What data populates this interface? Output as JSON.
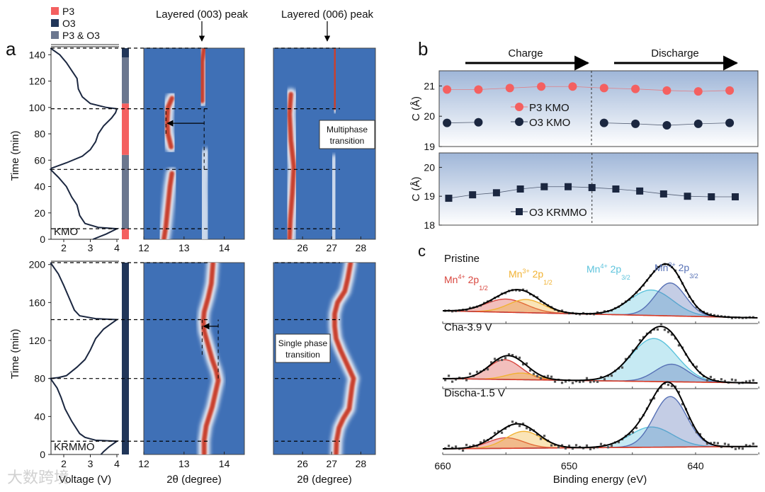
{
  "watermark": "大数跨境",
  "colors": {
    "p3": "#f46060",
    "o3": "#213659",
    "mixed": "#6b778f",
    "heat_bg": "#3f70b6",
    "heat_peak": "#c8402e",
    "xps_mn4_12": "#d9473f",
    "xps_mn3_12": "#f1b232",
    "xps_mn4_32": "#5cc3dc",
    "xps_mn3_32": "#5670b5"
  },
  "chart_data": [
    {
      "panel": "a",
      "panel_letter": "a",
      "type": "heatmap",
      "legend": [
        {
          "key": "p3",
          "label": "P3"
        },
        {
          "key": "o3",
          "label": "O3"
        },
        {
          "key": "mixed",
          "label": "P3 & O3"
        }
      ],
      "peak_titles": [
        "Layered (003) peak",
        "Layered (006) peak"
      ],
      "ylabel": "Time (min)",
      "voltage_xlabel": "Voltage (V)",
      "theta_xlabel": "2θ (degree)",
      "voltage_ticks": [
        "2",
        "3",
        "4"
      ],
      "theta1_ticks": [
        "12",
        "13",
        "14"
      ],
      "theta2_ticks": [
        "26",
        "27",
        "28"
      ],
      "rows": [
        {
          "sample": "KMO",
          "ylim": [
            0,
            145
          ],
          "yticks": [
            "0",
            "20",
            "40",
            "60",
            "80",
            "100",
            "120",
            "140"
          ],
          "voltage_curve": {
            "t": [
              0,
              4,
              8,
              9,
              12,
              18,
              26,
              32,
              40,
              47,
              53,
              54,
              58,
              63,
              68,
              74,
              80,
              86,
              92,
              96,
              99,
              100,
              103,
              108,
              114,
              122,
              128,
              134,
              140,
              145
            ],
            "v": [
              3.1,
              3.6,
              4.0,
              3.3,
              2.8,
              2.6,
              2.5,
              2.3,
              2.1,
              1.8,
              1.5,
              1.55,
              2.1,
              2.7,
              3.0,
              3.2,
              3.3,
              3.5,
              3.8,
              3.95,
              4.0,
              3.6,
              3.0,
              2.7,
              2.55,
              2.5,
              2.3,
              2.1,
              1.85,
              1.5
            ]
          },
          "phases": [
            {
              "from": 0,
              "to": 8,
              "phase": "p3"
            },
            {
              "from": 8,
              "to": 64,
              "phase": "mixed"
            },
            {
              "from": 64,
              "to": 103,
              "phase": "p3"
            },
            {
              "from": 103,
              "to": 138,
              "phase": "mixed"
            },
            {
              "from": 138,
              "to": 145,
              "phase": "o3"
            }
          ],
          "markers_min": [
            8,
            53,
            99,
            145
          ],
          "theta1_range": [
            12,
            14.5
          ],
          "theta2_range": [
            25,
            28.5
          ],
          "ridges_003": [
            {
              "t": [
                0,
                10,
                25,
                40,
                50
              ],
              "theta": [
                12.5,
                12.55,
                12.6,
                12.65,
                12.7
              ],
              "intensity": 1
            },
            {
              "t": [
                50,
                60,
                70
              ],
              "theta": [
                12.7,
                12.7,
                12.7
              ],
              "intensity": 0.4
            },
            {
              "t": [
                70,
                80,
                90,
                100,
                107
              ],
              "theta": [
                12.68,
                12.6,
                12.58,
                12.6,
                12.7
              ],
              "intensity": 1
            },
            {
              "t": [
                0,
                20,
                40,
                55,
                65
              ],
              "theta": [
                13.5,
                13.5,
                13.48,
                13.5,
                13.55
              ],
              "intensity": 0.45
            },
            {
              "t": [
                105,
                115,
                125,
                135,
                145
              ],
              "theta": [
                13.45,
                13.45,
                13.45,
                13.45,
                13.5
              ],
              "intensity": 0.8
            }
          ],
          "ridges_006": [
            {
              "t": [
                0,
                15,
                35,
                55,
                75,
                95,
                110
              ],
              "theta": [
                25.55,
                25.58,
                25.65,
                25.7,
                25.6,
                25.55,
                25.6
              ],
              "intensity": 1
            },
            {
              "t": [
                0,
                20,
                40,
                60
              ],
              "theta": [
                27.05,
                27.05,
                27.1,
                27.1
              ],
              "intensity": 0.45
            },
            {
              "t": [
                100,
                115,
                130,
                145
              ],
              "theta": [
                27.1,
                27.12,
                27.1,
                27.12
              ],
              "intensity": 0.75
            }
          ],
          "annotation": "Multiphase transition",
          "shift_arrow": {
            "t": 88,
            "from_theta": 13.5,
            "to_theta": 12.55
          }
        },
        {
          "sample": "KRMMO",
          "ylim": [
            0,
            202
          ],
          "yticks": [
            "0",
            "40",
            "80",
            "120",
            "160",
            "200"
          ],
          "voltage_curve": {
            "t": [
              0,
              3,
              8,
              14,
              15,
              18,
              22,
              35,
              48,
              60,
              70,
              80,
              81,
              83,
              92,
              100,
              110,
              122,
              132,
              138,
              142,
              143,
              146,
              152,
              165,
              178,
              190,
              202
            ],
            "v": [
              3.4,
              3.5,
              3.7,
              4.0,
              3.2,
              2.8,
              2.6,
              2.3,
              2.05,
              1.9,
              1.75,
              1.5,
              1.8,
              2.1,
              2.5,
              2.8,
              3.0,
              3.2,
              3.5,
              3.8,
              4.0,
              3.2,
              2.6,
              2.4,
              2.2,
              2.0,
              1.8,
              1.5
            ]
          },
          "phases": [
            {
              "from": 0,
              "to": 202,
              "phase": "o3"
            }
          ],
          "markers_min": [
            14,
            80,
            142,
            202
          ],
          "theta1_range": [
            12,
            14.5
          ],
          "theta2_range": [
            25,
            28.5
          ],
          "ridges_003": [
            {
              "t": [
                0,
                15,
                30,
                50,
                65,
                78,
                88,
                100,
                115,
                130,
                140,
                150,
                165,
                180,
                202
              ],
              "theta": [
                13.5,
                13.5,
                13.55,
                13.7,
                13.78,
                13.85,
                13.8,
                13.7,
                13.6,
                13.5,
                13.48,
                13.5,
                13.6,
                13.68,
                13.72
              ],
              "intensity": 1
            }
          ],
          "ridges_006": [
            {
              "t": [
                0,
                15,
                28,
                38,
                48,
                60,
                72,
                80,
                90,
                100,
                110,
                122,
                135,
                148,
                160,
                172,
                185,
                202
              ],
              "theta": [
                27.15,
                27.17,
                27.25,
                27.4,
                27.6,
                27.65,
                27.7,
                27.75,
                27.6,
                27.45,
                27.3,
                27.15,
                27.1,
                27.1,
                27.2,
                27.45,
                27.55,
                27.65
              ],
              "intensity": 1
            }
          ],
          "annotation": "Single phase transition",
          "shift_arrow": {
            "t": 135,
            "from_theta": 13.85,
            "to_theta": 13.45
          }
        }
      ]
    },
    {
      "panel": "b",
      "panel_letter": "b",
      "type": "scatter",
      "charge_label": "Charge",
      "discharge_label": "Discharge",
      "ylabel": "C (Å)",
      "subplots": [
        {
          "ylim": [
            19,
            21.5
          ],
          "yticks": [
            "19",
            "20",
            "21"
          ],
          "series": [
            {
              "name": "P3 KMO",
              "marker": "circle",
              "color": "#f46060",
              "x": [
                1,
                2,
                3,
                4,
                5,
                6,
                7,
                8,
                9,
                10
              ],
              "values": [
                20.88,
                20.88,
                20.93,
                20.98,
                20.98,
                20.93,
                20.9,
                20.85,
                20.82,
                20.85
              ]
            },
            {
              "name": "O3 KMO",
              "marker": "circle",
              "color": "#1b2740",
              "x": [
                1,
                2,
                6,
                7,
                8,
                9,
                10
              ],
              "values": [
                19.78,
                19.8,
                19.78,
                19.75,
                19.7,
                19.75,
                19.78
              ]
            }
          ],
          "xlim": [
            0.75,
            10.9
          ],
          "switch_x": 5.6
        },
        {
          "ylim": [
            18,
            20.5
          ],
          "yticks": [
            "18",
            "19",
            "20"
          ],
          "series": [
            {
              "name": "O3 KRMMO",
              "marker": "square",
              "color": "#1b2740",
              "x": [
                1,
                2,
                3,
                4,
                5,
                6,
                7,
                8,
                9,
                10,
                11,
                12,
                13
              ],
              "values": [
                18.93,
                19.05,
                19.12,
                19.25,
                19.33,
                19.33,
                19.3,
                19.25,
                19.18,
                19.08,
                19.0,
                18.98,
                18.98
              ]
            }
          ],
          "xlim": [
            0.6,
            13.95
          ],
          "switch_x": 7
        }
      ]
    },
    {
      "panel": "c",
      "panel_letter": "c",
      "type": "line",
      "xlabel": "Binding energy (eV)",
      "xlim": [
        660,
        635
      ],
      "xticks": [
        "660",
        "650",
        "640"
      ],
      "component_labels": [
        {
          "key": "xps_mn4_12",
          "ion": "Mn",
          "charge": "4+",
          "orb": " 2p",
          "sub": "1/2"
        },
        {
          "key": "xps_mn3_12",
          "ion": "Mn",
          "charge": "3+",
          "orb": " 2p",
          "sub": "1/2"
        },
        {
          "key": "xps_mn4_32",
          "ion": "Mn",
          "charge": "4+",
          "orb": " 2p",
          "sub": "3/2"
        },
        {
          "key": "xps_mn3_32",
          "ion": "Mn",
          "charge": "3+",
          "orb": " 2p",
          "sub": "3/2"
        }
      ],
      "spectra": [
        {
          "name": "Pristine",
          "noise": 0.02,
          "baseline": [
            0.16,
            0.0
          ],
          "peaks": [
            {
              "key": "xps_mn4_12",
              "center": 655,
              "amp": 0.3,
              "width": 1.6
            },
            {
              "key": "xps_mn3_12",
              "center": 653.4,
              "amp": 0.3,
              "width": 1.4
            },
            {
              "key": "xps_mn4_32",
              "center": 643.5,
              "amp": 0.58,
              "width": 1.7
            },
            {
              "key": "xps_mn3_32",
              "center": 642,
              "amp": 0.75,
              "width": 1.2
            }
          ]
        },
        {
          "name": "Cha-3.9 V",
          "noise": 0.07,
          "baseline": [
            0.1,
            0.0
          ],
          "peaks": [
            {
              "key": "xps_mn4_12",
              "center": 655.1,
              "amp": 0.45,
              "width": 1.3
            },
            {
              "key": "xps_mn3_12",
              "center": 653.8,
              "amp": 0.15,
              "width": 1.2
            },
            {
              "key": "xps_mn4_32",
              "center": 643.3,
              "amp": 0.98,
              "width": 1.8
            },
            {
              "key": "xps_mn3_32",
              "center": 641.9,
              "amp": 0.4,
              "width": 1.3
            }
          ]
        },
        {
          "name": "Discha-1.5 V",
          "noise": 0.06,
          "baseline": [
            0.0,
            0.05
          ],
          "peaks": [
            {
              "key": "xps_mn4_12",
              "center": 655,
              "amp": 0.22,
              "width": 1.4
            },
            {
              "key": "xps_mn3_12",
              "center": 653.6,
              "amp": 0.35,
              "width": 1.4
            },
            {
              "key": "xps_mn4_32",
              "center": 643.5,
              "amp": 0.42,
              "width": 1.7
            },
            {
              "key": "xps_mn3_32",
              "center": 642,
              "amp": 1.05,
              "width": 1.3
            }
          ]
        }
      ]
    }
  ]
}
